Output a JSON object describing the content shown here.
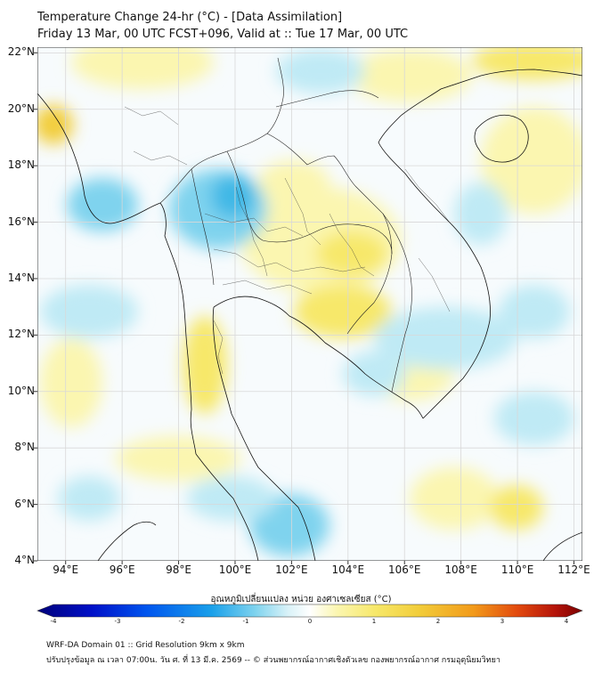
{
  "header": {
    "title_line1": "Temperature Change 24-hr (°C) - [Data Assimilation]",
    "title_line2": "Friday 13 Mar, 00 UTC FCST+096, Valid at :: Tue 17 Mar, 00 UTC"
  },
  "map": {
    "lat_labels": [
      "22°N",
      "20°N",
      "18°N",
      "16°N",
      "14°N",
      "12°N",
      "10°N",
      "8°N",
      "6°N",
      "4°N"
    ],
    "lon_labels": [
      "94°E",
      "96°E",
      "98°E",
      "100°E",
      "102°E",
      "104°E",
      "106°E",
      "108°E",
      "110°E",
      "112°E"
    ],
    "lat_values": [
      22,
      20,
      18,
      16,
      14,
      12,
      10,
      8,
      6,
      4
    ],
    "lon_values": [
      94,
      96,
      98,
      100,
      102,
      104,
      106,
      108,
      110,
      112
    ],
    "field_colors": {
      "light_blue": "#bfeaf5",
      "cyan": "#7fd3ee",
      "blue": "#3fb8e6",
      "light_yellow": "#fbf6b0",
      "yellow": "#f7e86a",
      "orange_yellow": "#f2cd3a"
    }
  },
  "colorbar": {
    "title": "อุณหภูมิเปลี่ยนแปลง หน่วย องศาเซลเซียส (°C)",
    "ticks": [
      "-4",
      "-3",
      "-2",
      "-1",
      "0",
      "1",
      "2",
      "3",
      "4"
    ],
    "tick_values": [
      -4,
      -3,
      -2,
      -1,
      0,
      1,
      2,
      3,
      4
    ],
    "range": [
      -4,
      4
    ],
    "colors": [
      "#00007a",
      "#0010c8",
      "#0055ee",
      "#1aa0ea",
      "#7fd3ee",
      "#d9f2f8",
      "#ffffff",
      "#fbf6b0",
      "#f7e86a",
      "#f2cd3a",
      "#f29a1a",
      "#e24a0e",
      "#b5140a",
      "#7a0000"
    ]
  },
  "footer": {
    "line1": "WRF-DA Domain 01 :: Grid Resolution 9km x 9km",
    "line2": "ปรับปรุงข้อมูล ณ เวลา 07:00น. วัน ศ. ที่ 13 มี.ค. 2569 -- © ส่วนพยากรณ์อากาศเชิงตัวเลข กองพยากรณ์อากาศ กรมอุตุนิยมวิทยา"
  }
}
